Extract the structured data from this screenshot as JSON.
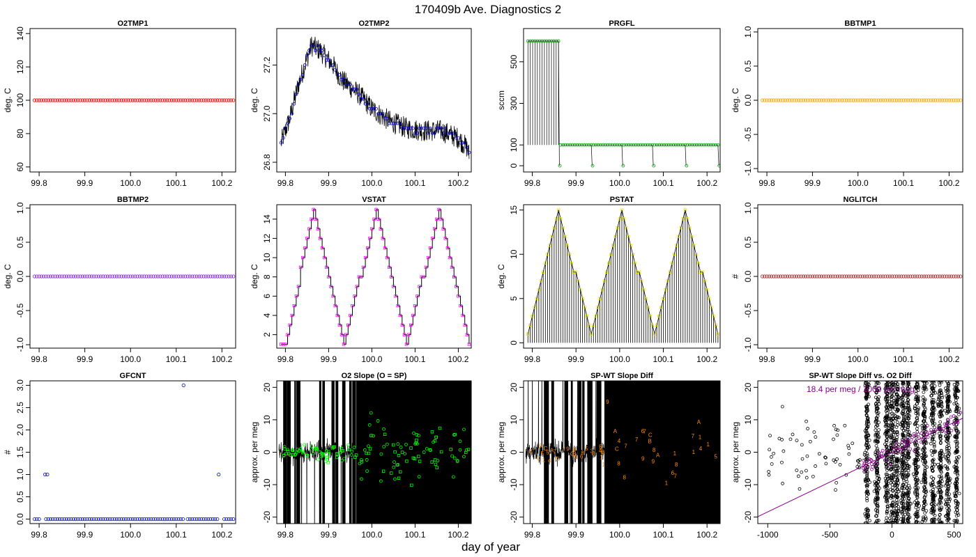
{
  "figure": {
    "title": "170409b   Ave. Diagnostics 2",
    "xlabel": "day of year"
  },
  "chart_data": [
    {
      "id": "o2tmp1",
      "type": "scatter",
      "title": "O2TMP1",
      "ylabel": "deg. C",
      "xlim": [
        99.78,
        100.23
      ],
      "ylim": [
        57,
        143
      ],
      "xticks": [
        99.8,
        99.9,
        100.0,
        100.1,
        100.2
      ],
      "xticklabels": [
        "99.8",
        "99.9",
        "100.0",
        "100.1",
        "100.2"
      ],
      "yticks": [
        60,
        80,
        100,
        120,
        140
      ],
      "yticklabels": [
        "60",
        "80",
        "100",
        "120",
        "140"
      ],
      "series": [
        {
          "color": "#ff0000",
          "marker": "circle",
          "x_start": 99.79,
          "x_end": 100.225,
          "n": 88,
          "y": 100
        }
      ]
    },
    {
      "id": "o2tmp2",
      "type": "line",
      "title": "O2TMP2",
      "ylabel": "deg. C",
      "xlim": [
        99.78,
        100.23
      ],
      "ylim": [
        26.76,
        27.35
      ],
      "xticks": [
        99.8,
        99.9,
        100.0,
        100.1,
        100.2
      ],
      "xticklabels": [
        "99.8",
        "99.9",
        "100.0",
        "100.1",
        "100.2"
      ],
      "yticks": [
        26.8,
        27.0,
        27.2
      ],
      "yticklabels": [
        "26.8",
        "27.0",
        "27.2"
      ],
      "line_color": "#000000",
      "point_color": "#0000cc",
      "profile_x": [
        99.79,
        99.81,
        99.83,
        99.86,
        99.88,
        99.91,
        99.93,
        99.97,
        100.0,
        100.04,
        100.08,
        100.12,
        100.16,
        100.2,
        100.22,
        100.225
      ],
      "profile_y": [
        26.88,
        26.98,
        27.12,
        27.28,
        27.26,
        27.2,
        27.14,
        27.08,
        27.02,
        26.97,
        26.94,
        26.93,
        26.93,
        26.9,
        26.86,
        26.83
      ],
      "noise": 0.045,
      "n": 88
    },
    {
      "id": "prgfl",
      "type": "line",
      "title": "PRGFL",
      "ylabel": "sccm",
      "xlim": [
        99.78,
        100.23
      ],
      "ylim": [
        -30,
        660
      ],
      "xticks": [
        99.8,
        99.9,
        100.0,
        100.1,
        100.2
      ],
      "xticklabels": [
        "99.8",
        "99.9",
        "100.0",
        "100.1",
        "100.2"
      ],
      "yticks": [
        0,
        100,
        300,
        500
      ],
      "yticklabels": [
        "0",
        "100",
        "300",
        "500"
      ],
      "line_color": "#000000",
      "point_color": "#00aa00",
      "segments": [
        {
          "x_start": 99.79,
          "x_end": 99.86,
          "level": 600
        },
        {
          "x_start": 99.865,
          "x_end": 99.935,
          "level": 100
        },
        {
          "x_start": 99.94,
          "x_end": 100.005,
          "level": 100
        },
        {
          "x_start": 100.01,
          "x_end": 100.075,
          "level": 100
        },
        {
          "x_start": 100.08,
          "x_end": 100.15,
          "level": 100
        },
        {
          "x_start": 100.155,
          "x_end": 100.225,
          "level": 100
        }
      ],
      "spike_floor": 100,
      "drop_value": 0
    },
    {
      "id": "bbtmp1",
      "type": "scatter",
      "title": "BBTMP1",
      "ylabel": "deg. C",
      "xlim": [
        99.78,
        100.23
      ],
      "ylim": [
        -1.05,
        1.05
      ],
      "xticks": [
        99.8,
        99.9,
        100.0,
        100.1,
        100.2
      ],
      "xticklabels": [
        "99.8",
        "99.9",
        "100.0",
        "100.1",
        "100.2"
      ],
      "yticks": [
        -1.0,
        -0.5,
        0.0,
        0.5,
        1.0
      ],
      "yticklabels": [
        "-1.0",
        "-0.5",
        "0.0",
        "0.5",
        "1.0"
      ],
      "series": [
        {
          "color": "#ffa500",
          "marker": "circle",
          "x_start": 99.79,
          "x_end": 100.225,
          "n": 88,
          "y": 0
        }
      ]
    },
    {
      "id": "bbtmp2",
      "type": "scatter",
      "title": "BBTMP2",
      "ylabel": "deg. C",
      "xlim": [
        99.78,
        100.23
      ],
      "ylim": [
        -1.05,
        1.05
      ],
      "xticks": [
        99.8,
        99.9,
        100.0,
        100.1,
        100.2
      ],
      "xticklabels": [
        "99.8",
        "99.9",
        "100.0",
        "100.1",
        "100.2"
      ],
      "yticks": [
        -1.0,
        -0.5,
        0.0,
        0.5,
        1.0
      ],
      "yticklabels": [
        "-1.0",
        "-0.5",
        "0.0",
        "0.5",
        "1.0"
      ],
      "series": [
        {
          "color": "#8a2be2",
          "marker": "circle",
          "x_start": 99.79,
          "x_end": 100.225,
          "n": 88,
          "y": 0
        }
      ]
    },
    {
      "id": "vstat",
      "type": "line",
      "title": "VSTAT",
      "ylabel": "deg. C",
      "xlim": [
        99.78,
        100.23
      ],
      "ylim": [
        0.6,
        15.5
      ],
      "xticks": [
        99.8,
        99.9,
        100.0,
        100.1,
        100.2
      ],
      "xticklabels": [
        "99.8",
        "99.9",
        "100.0",
        "100.1",
        "100.2"
      ],
      "yticks": [
        2,
        4,
        6,
        8,
        10,
        12,
        14
      ],
      "yticklabels": [
        "2",
        "4",
        "6",
        "8",
        "10",
        "12",
        "14"
      ],
      "line_color": "#000000",
      "point_color": "#ff00ff",
      "wave": "triangle",
      "x_start": 99.79,
      "x_end": 100.225,
      "n": 88,
      "min": 1,
      "max": 15,
      "peaks": [
        99.865,
        100.01,
        100.155
      ],
      "troughs": [
        99.8,
        99.935,
        100.08,
        100.225
      ],
      "style": "step"
    },
    {
      "id": "pstat",
      "type": "line",
      "title": "PSTAT",
      "ylabel": "deg. C",
      "xlim": [
        99.78,
        100.23
      ],
      "ylim": [
        -0.6,
        15.6
      ],
      "xticks": [
        99.8,
        99.9,
        100.0,
        100.1,
        100.2
      ],
      "xticklabels": [
        "99.8",
        "99.9",
        "100.0",
        "100.1",
        "100.2"
      ],
      "yticks": [
        0,
        5,
        10,
        15
      ],
      "yticklabels": [
        "0",
        "5",
        "10",
        "15"
      ],
      "line_color": "#000000",
      "point_color": "#e6e600",
      "wave": "triangle",
      "x_start": 99.79,
      "x_end": 100.225,
      "n": 88,
      "min": 1,
      "max": 15,
      "peaks": [
        99.86,
        100.005,
        100.15
      ],
      "troughs": [
        99.79,
        99.935,
        100.08,
        100.225
      ],
      "style": "spike"
    },
    {
      "id": "nglitch",
      "type": "scatter",
      "title": "NGLITCH",
      "ylabel": "#",
      "xlim": [
        99.78,
        100.23
      ],
      "ylim": [
        -1.05,
        1.05
      ],
      "xticks": [
        99.8,
        99.9,
        100.0,
        100.1,
        100.2
      ],
      "xticklabels": [
        "99.8",
        "99.9",
        "100.0",
        "100.1",
        "100.2"
      ],
      "yticks": [
        -1.0,
        -0.5,
        0.0,
        0.5,
        1.0
      ],
      "yticklabels": [
        "-1.0",
        "-0.5",
        "0.0",
        "0.5",
        "1.0"
      ],
      "series": [
        {
          "color": "#a52a2a",
          "marker": "circle",
          "x_start": 99.79,
          "x_end": 100.225,
          "n": 88,
          "y": 0
        }
      ]
    },
    {
      "id": "gfcnt",
      "type": "scatter",
      "title": "GFCNT",
      "ylabel": "#",
      "xlim": [
        99.78,
        100.23
      ],
      "ylim": [
        -0.1,
        3.1
      ],
      "xticks": [
        99.8,
        99.9,
        100.0,
        100.1,
        100.2
      ],
      "xticklabels": [
        "99.8",
        "99.9",
        "100.0",
        "100.1",
        "100.2"
      ],
      "yticks": [
        0.0,
        0.5,
        1.0,
        1.5,
        2.0,
        2.5,
        3.0
      ],
      "yticklabels": [
        "0.0",
        "0.5",
        "1.0",
        "1.5",
        "2.0",
        "2.5",
        "3.0"
      ],
      "series": [
        {
          "color": "#0000ff",
          "marker": "circle",
          "x_start": 99.79,
          "x_end": 100.225,
          "n": 88,
          "y": 0,
          "gaps": [
            99.807,
            99.81,
            100.12,
            100.197
          ],
          "special": [
            [
              99.813,
              1
            ],
            [
              99.818,
              1
            ],
            [
              100.116,
              3
            ],
            [
              100.193,
              1
            ]
          ]
        }
      ]
    },
    {
      "id": "o2slope",
      "type": "line",
      "title": "O2 Slope (O = SP)",
      "ylabel": "approx. per meg",
      "xlim": [
        99.78,
        100.23
      ],
      "ylim": [
        -22,
        22
      ],
      "xticks": [
        99.8,
        99.9,
        100.0,
        100.1,
        100.2
      ],
      "xticklabels": [
        "99.8",
        "99.9",
        "100.0",
        "100.1",
        "100.2"
      ],
      "yticks": [
        -20,
        -10,
        0,
        10,
        20
      ],
      "yticklabels": [
        "-20",
        "-10",
        "0",
        "10",
        "20"
      ],
      "line_color": "#000000",
      "point_color": "#00ff00",
      "quiet_end": 99.965,
      "quiet_noise": 7,
      "n_points": 150,
      "point_noise_early": 5,
      "point_noise_late": 10
    },
    {
      "id": "spwtslope",
      "type": "line",
      "title": "SP-WT Slope Diff",
      "ylabel": "approx. per meg",
      "xlim": [
        99.78,
        100.23
      ],
      "ylim": [
        -22,
        22
      ],
      "xticks": [
        99.8,
        99.9,
        100.0,
        100.1,
        100.2
      ],
      "xticklabels": [
        "99.8",
        "99.9",
        "100.0",
        "100.1",
        "100.2"
      ],
      "yticks": [
        -20,
        -10,
        0,
        10,
        20
      ],
      "yticklabels": [
        "-20",
        "-10",
        "0",
        "10",
        "20"
      ],
      "line_color": "#000000",
      "label_color": "#ff8c00",
      "quiet_end": 99.965,
      "quiet_noise": 8,
      "code_labels": [
        "1",
        "3",
        "4",
        "5",
        "7",
        "8",
        "9",
        "A",
        "B",
        "C",
        "6"
      ],
      "n_labels": 55
    },
    {
      "id": "spwtvso2",
      "type": "scatter",
      "title": "SP-WT Slope Diff vs. O2 Diff",
      "ylabel": "approx. per meg",
      "xlim": [
        -1080,
        570
      ],
      "ylim": [
        -22,
        22
      ],
      "xticks": [
        -1000,
        -500,
        0,
        500
      ],
      "xticklabels": [
        "-1000",
        "-500",
        "0",
        "500"
      ],
      "yticks": [
        -20,
        -10,
        0,
        10,
        20
      ],
      "yticklabels": [
        "-20",
        "-10",
        "0",
        "10",
        "20"
      ],
      "point_color": "#000000",
      "fit_color": "#8b008b",
      "annotation": "18.4 per meg / 1000 per meg",
      "fit_slope": 0.0184
    }
  ]
}
